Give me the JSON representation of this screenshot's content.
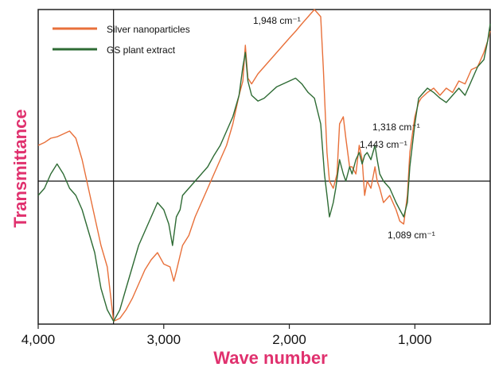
{
  "chart_data": {
    "type": "line",
    "xlabel": "Wave number",
    "ylabel": "Transmittance",
    "xlim": [
      4000,
      400
    ],
    "x_reversed": true,
    "x_ticks": [
      4000,
      3000,
      2000,
      1000
    ],
    "x_tick_labels": [
      "4,000",
      "3,000",
      "2,000",
      "1,000"
    ],
    "grid": false,
    "legend_position": "top-left",
    "axis_label_color": "#e0316e",
    "series": [
      {
        "name": "Silver nanoparticles",
        "color": "#e8703a",
        "x": [
          4000,
          3950,
          3900,
          3850,
          3800,
          3750,
          3700,
          3650,
          3600,
          3550,
          3500,
          3450,
          3400,
          3350,
          3300,
          3250,
          3200,
          3150,
          3100,
          3050,
          3000,
          2950,
          2920,
          2900,
          2870,
          2850,
          2800,
          2750,
          2700,
          2650,
          2600,
          2550,
          2500,
          2450,
          2400,
          2370,
          2350,
          2330,
          2300,
          2250,
          2200,
          2150,
          2100,
          2050,
          2000,
          1948,
          1900,
          1850,
          1800,
          1780,
          1750,
          1730,
          1700,
          1680,
          1650,
          1620,
          1600,
          1570,
          1550,
          1520,
          1500,
          1470,
          1443,
          1420,
          1400,
          1380,
          1350,
          1318,
          1300,
          1280,
          1250,
          1200,
          1150,
          1120,
          1089,
          1060,
          1040,
          1000,
          970,
          950,
          900,
          850,
          800,
          750,
          700,
          650,
          600,
          550,
          500,
          450,
          420,
          400
        ],
        "y": [
          0.25,
          0.27,
          0.3,
          0.31,
          0.33,
          0.35,
          0.3,
          0.15,
          -0.05,
          -0.25,
          -0.45,
          -0.6,
          -0.98,
          -0.96,
          -0.9,
          -0.82,
          -0.72,
          -0.62,
          -0.55,
          -0.5,
          -0.58,
          -0.6,
          -0.7,
          -0.63,
          -0.52,
          -0.45,
          -0.38,
          -0.25,
          -0.15,
          -0.05,
          0.05,
          0.15,
          0.25,
          0.4,
          0.6,
          0.7,
          0.95,
          0.72,
          0.68,
          0.75,
          0.8,
          0.85,
          0.9,
          0.95,
          1.0,
          1.05,
          1.1,
          1.15,
          1.2,
          1.18,
          1.15,
          0.8,
          0.2,
          0.0,
          -0.05,
          0.05,
          0.4,
          0.45,
          0.3,
          0.1,
          0.1,
          0.05,
          0.25,
          0.15,
          -0.1,
          0.0,
          -0.05,
          0.1,
          0.0,
          -0.05,
          -0.15,
          -0.1,
          -0.2,
          -0.28,
          -0.3,
          -0.1,
          0.2,
          0.45,
          0.55,
          0.58,
          0.62,
          0.65,
          0.6,
          0.65,
          0.62,
          0.7,
          0.68,
          0.78,
          0.8,
          0.9,
          0.98,
          1.05
        ]
      },
      {
        "name": "GS plant extract",
        "color": "#2e6b34",
        "x": [
          4000,
          3950,
          3900,
          3850,
          3800,
          3750,
          3700,
          3650,
          3600,
          3550,
          3500,
          3450,
          3400,
          3350,
          3300,
          3250,
          3200,
          3150,
          3100,
          3050,
          3000,
          2960,
          2930,
          2900,
          2870,
          2850,
          2800,
          2750,
          2700,
          2650,
          2600,
          2550,
          2500,
          2450,
          2400,
          2370,
          2350,
          2330,
          2300,
          2250,
          2200,
          2150,
          2100,
          2050,
          2000,
          1950,
          1900,
          1850,
          1800,
          1750,
          1720,
          1700,
          1680,
          1650,
          1630,
          1600,
          1570,
          1550,
          1520,
          1500,
          1470,
          1443,
          1420,
          1400,
          1380,
          1350,
          1318,
          1300,
          1280,
          1250,
          1200,
          1150,
          1120,
          1089,
          1060,
          1040,
          1000,
          970,
          950,
          900,
          850,
          800,
          750,
          700,
          650,
          600,
          550,
          500,
          450,
          420,
          400
        ],
        "y": [
          -0.1,
          -0.05,
          0.05,
          0.12,
          0.05,
          -0.05,
          -0.1,
          -0.2,
          -0.35,
          -0.5,
          -0.75,
          -0.9,
          -0.98,
          -0.9,
          -0.75,
          -0.6,
          -0.45,
          -0.35,
          -0.25,
          -0.15,
          -0.2,
          -0.3,
          -0.45,
          -0.25,
          -0.2,
          -0.1,
          -0.05,
          0.0,
          0.05,
          0.1,
          0.18,
          0.25,
          0.35,
          0.45,
          0.6,
          0.8,
          0.9,
          0.7,
          0.6,
          0.56,
          0.58,
          0.62,
          0.66,
          0.68,
          0.7,
          0.72,
          0.68,
          0.62,
          0.58,
          0.4,
          0.05,
          -0.1,
          -0.25,
          -0.15,
          -0.05,
          0.15,
          0.05,
          0.0,
          0.1,
          0.05,
          0.15,
          0.2,
          0.12,
          0.18,
          0.2,
          0.15,
          0.25,
          0.15,
          0.05,
          0.0,
          -0.05,
          -0.15,
          -0.2,
          -0.25,
          -0.15,
          0.1,
          0.4,
          0.58,
          0.6,
          0.65,
          0.62,
          0.58,
          0.55,
          0.6,
          0.65,
          0.6,
          0.7,
          0.8,
          0.85,
          0.98,
          1.1
        ]
      }
    ],
    "annotations": [
      {
        "text": "1,948 cm⁻¹",
        "x": 1948
      },
      {
        "text": "1,318 cm⁻¹",
        "x": 1318
      },
      {
        "text": "1,443 cm⁻¹",
        "x": 1443
      },
      {
        "text": "1,089 cm⁻¹",
        "x": 1089
      }
    ],
    "reference_lines": {
      "vertical_x": 3400,
      "horizontal_y": 0
    }
  }
}
